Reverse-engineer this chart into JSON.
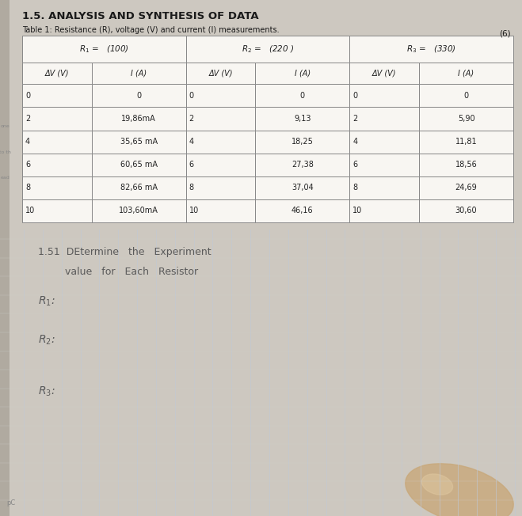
{
  "title": "1.5. ANALYSIS AND SYNTHESIS OF DATA",
  "subtitle": "Table 1: Resistance (R), voltage (V) and current (I) measurements.",
  "mark": "(6)",
  "page_bg": "#cdc8c0",
  "table_bg": "#f5f3f0",
  "bottom_bg": "#e8e8e6",
  "r1_label": "$R_1$ =   (100)",
  "r2_label": "$R_2$ =   (220 )",
  "r3_label": "$R_3$ =   (330)",
  "col_headers": [
    "ΔV (V)",
    "I (A)",
    "ΔV (V)",
    "I (A)",
    "ΔV (V)",
    "I (A)"
  ],
  "r1_dv": [
    "0",
    "2",
    "4",
    "6",
    "8",
    "10"
  ],
  "r1_i": [
    "0",
    "19,86mA",
    "35,65 mA",
    "60,65 mA",
    "82,66 mA",
    "103,60mA"
  ],
  "r2_dv": [
    "0",
    "2",
    "4",
    "6",
    "8",
    "10"
  ],
  "r2_i": [
    "0",
    "9,13",
    "18,25",
    "27,38",
    "37,04",
    "46,16"
  ],
  "r3_dv": [
    "0",
    "2",
    "4",
    "6",
    "8",
    "10"
  ],
  "r3_i": [
    "0",
    "5,90",
    "11,81",
    "18,56",
    "24,69",
    "30,60"
  ],
  "line_color": "#b0bac8",
  "vline_color": "#c0c8d4",
  "finger_color": "#c8a87a"
}
